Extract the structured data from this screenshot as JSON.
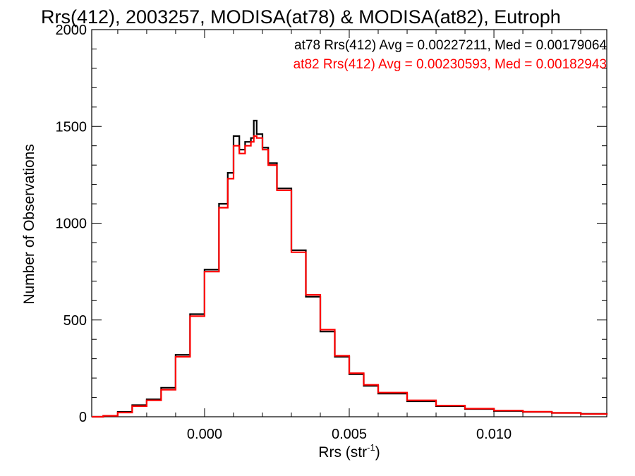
{
  "chart_data": {
    "type": "line",
    "drawstyle": "steps",
    "title": "Rrs(412), 2003257, MODISA(at78) & MODISA(at82), Eutroph",
    "xlabel_main": "Rrs (str",
    "xlabel_sup": "-1",
    "xlabel_end": ")",
    "ylabel": "Number of Observations",
    "xlim": [
      -0.0039,
      0.0139
    ],
    "ylim": [
      0,
      2000
    ],
    "x_ticks": [
      0.0,
      0.005,
      0.01
    ],
    "x_tick_labels": [
      "0.000",
      "0.005",
      "0.010"
    ],
    "y_ticks": [
      0,
      500,
      1000,
      1500,
      2000
    ],
    "y_tick_labels": [
      "0",
      "500",
      "1000",
      "1500",
      "2000"
    ],
    "grid": false,
    "legend": "top-right",
    "stats": [
      {
        "text": "at78 Rrs(412) Avg = 0.00227211, Med = 0.00179064",
        "color": "#000000"
      },
      {
        "text": "at82 Rrs(412) Avg = 0.00230593, Med = 0.00182943",
        "color": "#ff0000"
      }
    ],
    "series": [
      {
        "color": "#000000",
        "x": [
          -0.0039,
          -0.0035,
          -0.003,
          -0.0025,
          -0.002,
          -0.0015,
          -0.001,
          -0.0005,
          0.0,
          0.0005,
          0.0008,
          0.001,
          0.0012,
          0.0014,
          0.0016,
          0.0017,
          0.0018,
          0.002,
          0.0022,
          0.0025,
          0.003,
          0.0035,
          0.004,
          0.0045,
          0.005,
          0.0055,
          0.006,
          0.007,
          0.008,
          0.009,
          0.01,
          0.011,
          0.012,
          0.013,
          0.0139
        ],
        "y": [
          0,
          5,
          25,
          60,
          90,
          150,
          320,
          530,
          760,
          1100,
          1260,
          1450,
          1380,
          1420,
          1440,
          1530,
          1460,
          1390,
          1310,
          1180,
          860,
          620,
          440,
          310,
          220,
          160,
          120,
          80,
          55,
          40,
          30,
          25,
          20,
          15,
          10
        ]
      },
      {
        "color": "#ff0000",
        "x": [
          -0.0039,
          -0.0035,
          -0.003,
          -0.0025,
          -0.002,
          -0.0015,
          -0.001,
          -0.0005,
          0.0,
          0.0005,
          0.0008,
          0.001,
          0.0012,
          0.0014,
          0.0016,
          0.0017,
          0.0018,
          0.002,
          0.0022,
          0.0025,
          0.003,
          0.0035,
          0.004,
          0.0045,
          0.005,
          0.0055,
          0.006,
          0.007,
          0.008,
          0.009,
          0.01,
          0.011,
          0.012,
          0.013,
          0.0139
        ],
        "y": [
          0,
          5,
          22,
          55,
          85,
          140,
          310,
          520,
          750,
          1080,
          1230,
          1400,
          1360,
          1400,
          1420,
          1450,
          1440,
          1380,
          1300,
          1170,
          850,
          630,
          450,
          315,
          225,
          165,
          125,
          85,
          58,
          42,
          32,
          26,
          20,
          14,
          10
        ]
      }
    ]
  }
}
